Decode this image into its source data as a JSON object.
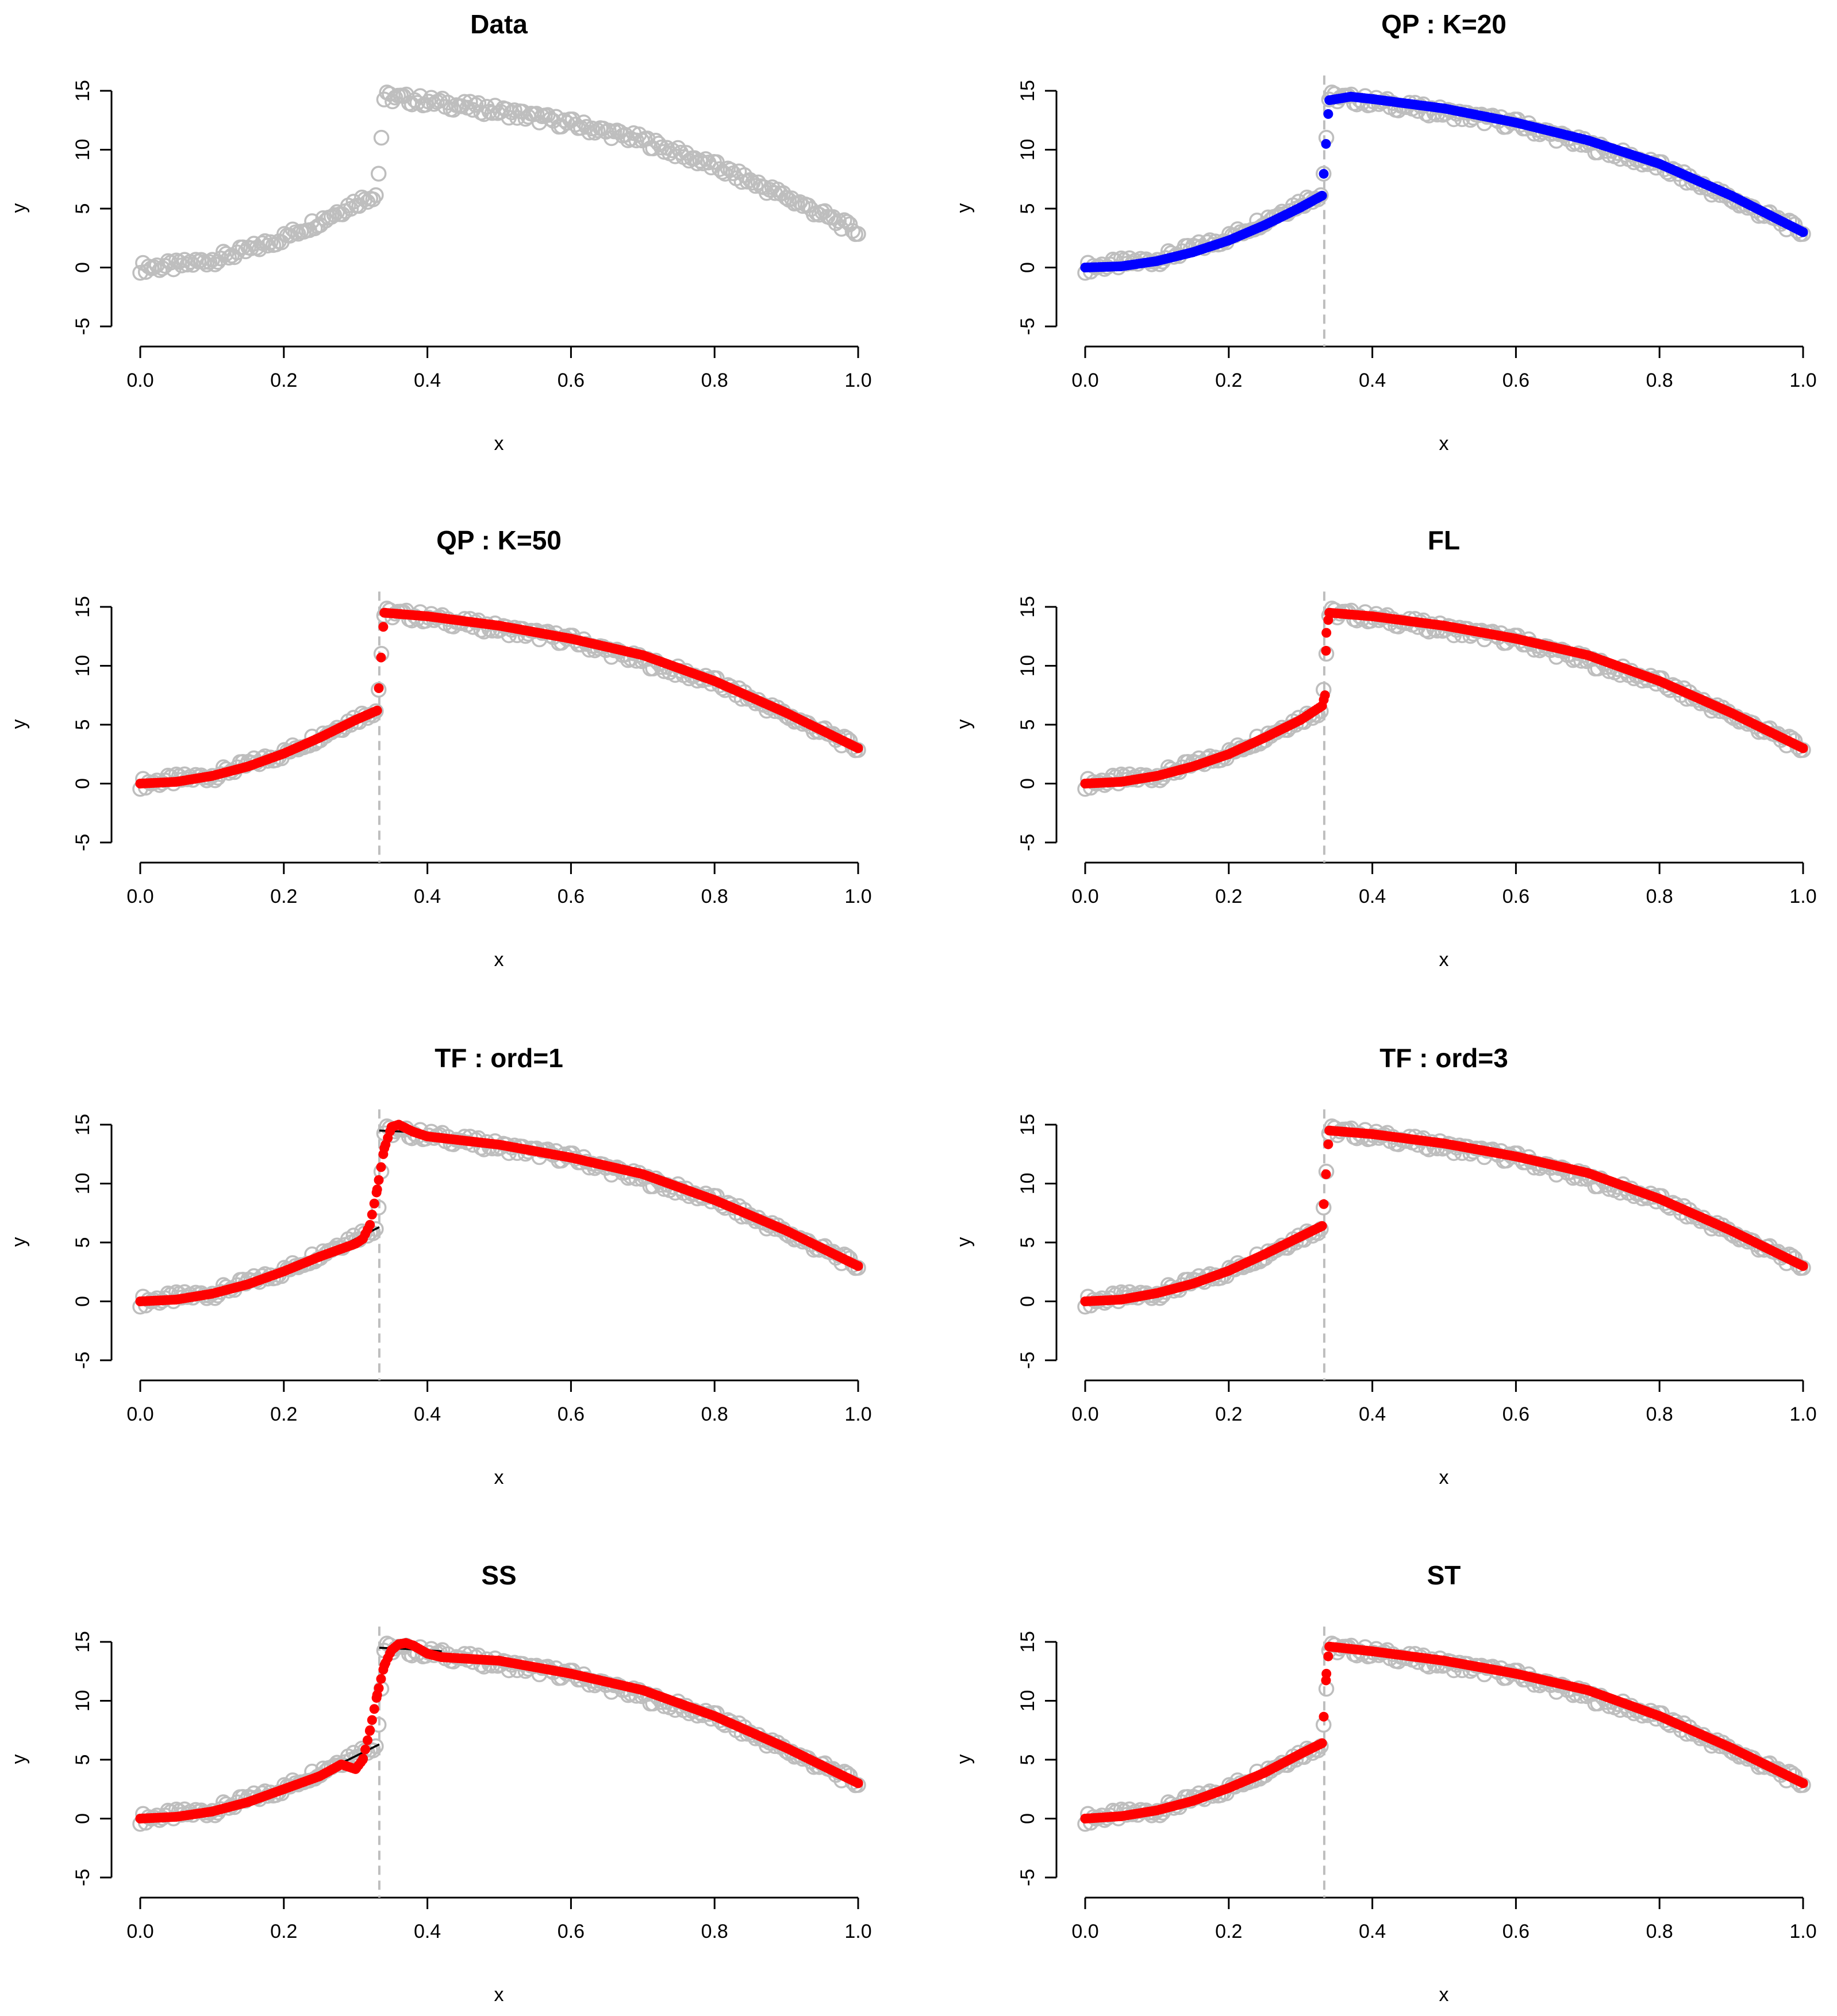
{
  "figure": {
    "colors": {
      "data_points": "#bebebe",
      "jump_line": "#bebebe",
      "fit_blue": "#0000ff",
      "fit_red": "#ff0000",
      "true_curve": "#000000",
      "axis": "#000000"
    }
  },
  "chart_data": [
    {
      "type": "scatter",
      "title": "Data",
      "xlabel": "x",
      "ylabel": "y",
      "xlim": [
        0,
        1
      ],
      "ylim": [
        -5,
        15
      ],
      "x_ticks": [
        "0.0",
        "0.2",
        "0.4",
        "0.6",
        "0.8",
        "1.0"
      ],
      "y_ticks": [
        "-5",
        "0",
        "5",
        "10",
        "15"
      ],
      "jump_at": null,
      "series": [
        {
          "name": "data",
          "color": "#bebebe",
          "x": [
            0.0,
            0.05,
            0.1,
            0.15,
            0.2,
            0.25,
            0.3,
            0.33,
            0.34,
            0.4,
            0.5,
            0.6,
            0.7,
            0.8,
            0.9,
            1.0
          ],
          "y": [
            0.0,
            0.15,
            0.65,
            1.45,
            2.55,
            3.95,
            5.5,
            6.3,
            14.5,
            14.1,
            13.3,
            12.2,
            10.8,
            8.6,
            6.0,
            3.0
          ]
        }
      ]
    },
    {
      "type": "scatter",
      "title": "QP : K=20",
      "xlabel": "x",
      "ylabel": "y",
      "xlim": [
        0,
        1
      ],
      "ylim": [
        -5,
        15
      ],
      "x_ticks": [
        "0.0",
        "0.2",
        "0.4",
        "0.6",
        "0.8",
        "1.0"
      ],
      "y_ticks": [
        "-5",
        "0",
        "5",
        "10",
        "15"
      ],
      "jump_at": 0.333,
      "series": [
        {
          "name": "data",
          "color": "#bebebe",
          "x": [
            0.0,
            0.1,
            0.2,
            0.3,
            0.33,
            0.34,
            0.4,
            0.6,
            0.8,
            1.0
          ],
          "y": [
            0.0,
            0.65,
            2.55,
            5.5,
            6.3,
            14.5,
            14.1,
            12.2,
            8.6,
            3.0
          ]
        },
        {
          "name": "fit",
          "color": "#0000ff",
          "x": [
            0.0,
            0.05,
            0.1,
            0.15,
            0.2,
            0.25,
            0.3,
            0.33,
            0.34,
            0.37,
            0.4,
            0.5,
            0.6,
            0.7,
            0.8,
            0.9,
            1.0
          ],
          "y": [
            0.0,
            0.1,
            0.55,
            1.3,
            2.3,
            3.6,
            5.1,
            6.1,
            14.2,
            14.5,
            14.3,
            13.5,
            12.3,
            10.8,
            8.8,
            6.1,
            3.0
          ]
        }
      ]
    },
    {
      "type": "scatter",
      "title": "QP : K=50",
      "xlabel": "x",
      "ylabel": "y",
      "xlim": [
        0,
        1
      ],
      "ylim": [
        -5,
        15
      ],
      "x_ticks": [
        "0.0",
        "0.2",
        "0.4",
        "0.6",
        "0.8",
        "1.0"
      ],
      "y_ticks": [
        "-5",
        "0",
        "5",
        "10",
        "15"
      ],
      "jump_at": 0.333,
      "series": [
        {
          "name": "data",
          "color": "#bebebe",
          "x": [
            0.0,
            0.1,
            0.2,
            0.3,
            0.33,
            0.34,
            0.4,
            0.6,
            0.8,
            1.0
          ],
          "y": [
            0.0,
            0.65,
            2.55,
            5.5,
            6.3,
            14.5,
            14.1,
            12.2,
            8.6,
            3.0
          ]
        },
        {
          "name": "fit",
          "color": "#ff0000",
          "x": [
            0.0,
            0.05,
            0.1,
            0.15,
            0.2,
            0.25,
            0.3,
            0.33,
            0.34,
            0.4,
            0.5,
            0.6,
            0.7,
            0.8,
            0.9,
            1.0
          ],
          "y": [
            0.0,
            0.15,
            0.65,
            1.45,
            2.55,
            3.9,
            5.4,
            6.2,
            14.5,
            14.2,
            13.4,
            12.3,
            10.9,
            8.7,
            6.0,
            3.0
          ]
        }
      ]
    },
    {
      "type": "scatter",
      "title": "FL",
      "xlabel": "x",
      "ylabel": "y",
      "xlim": [
        0,
        1
      ],
      "ylim": [
        -5,
        15
      ],
      "x_ticks": [
        "0.0",
        "0.2",
        "0.4",
        "0.6",
        "0.8",
        "1.0"
      ],
      "y_ticks": [
        "-5",
        "0",
        "5",
        "10",
        "15"
      ],
      "jump_at": 0.333,
      "series": [
        {
          "name": "data",
          "color": "#bebebe",
          "x": [
            0.0,
            0.1,
            0.2,
            0.3,
            0.33,
            0.34,
            0.4,
            0.6,
            0.8,
            1.0
          ],
          "y": [
            0.0,
            0.65,
            2.55,
            5.5,
            6.3,
            14.5,
            14.1,
            12.2,
            8.6,
            3.0
          ]
        },
        {
          "name": "fit",
          "color": "#ff0000",
          "x": [
            0.0,
            0.05,
            0.1,
            0.15,
            0.2,
            0.25,
            0.3,
            0.33,
            0.334,
            0.336,
            0.34,
            0.4,
            0.5,
            0.6,
            0.7,
            0.8,
            0.9,
            1.0
          ],
          "y": [
            0.0,
            0.15,
            0.65,
            1.45,
            2.5,
            3.9,
            5.4,
            6.6,
            7.5,
            12.8,
            14.5,
            14.2,
            13.4,
            12.3,
            10.9,
            8.7,
            6.0,
            3.0
          ]
        }
      ]
    },
    {
      "type": "scatter",
      "title": "TF : ord=1",
      "xlabel": "x",
      "ylabel": "y",
      "xlim": [
        0,
        1
      ],
      "ylim": [
        -5,
        15
      ],
      "x_ticks": [
        "0.0",
        "0.2",
        "0.4",
        "0.6",
        "0.8",
        "1.0"
      ],
      "y_ticks": [
        "-5",
        "0",
        "5",
        "10",
        "15"
      ],
      "jump_at": 0.333,
      "series": [
        {
          "name": "data",
          "color": "#bebebe",
          "x": [
            0.0,
            0.1,
            0.2,
            0.3,
            0.33,
            0.34,
            0.4,
            0.6,
            0.8,
            1.0
          ],
          "y": [
            0.0,
            0.65,
            2.55,
            5.5,
            6.3,
            14.5,
            14.1,
            12.2,
            8.6,
            3.0
          ]
        },
        {
          "name": "true",
          "color": "#000000",
          "x": [
            0.25,
            0.29,
            0.333,
            0.333,
            0.37,
            0.42
          ],
          "y": [
            3.9,
            5.0,
            6.3,
            14.5,
            14.4,
            14.2
          ]
        },
        {
          "name": "fit",
          "color": "#ff0000",
          "x": [
            0.0,
            0.05,
            0.1,
            0.15,
            0.2,
            0.25,
            0.3,
            0.31,
            0.32,
            0.33,
            0.34,
            0.35,
            0.36,
            0.38,
            0.4,
            0.5,
            0.6,
            0.7,
            0.8,
            0.9,
            1.0
          ],
          "y": [
            0.0,
            0.15,
            0.65,
            1.45,
            2.55,
            3.8,
            4.9,
            5.3,
            6.5,
            9.5,
            13.0,
            14.8,
            15.0,
            14.4,
            14.0,
            13.3,
            12.2,
            10.8,
            8.6,
            6.0,
            3.0
          ]
        }
      ]
    },
    {
      "type": "scatter",
      "title": "TF : ord=3",
      "xlabel": "x",
      "ylabel": "y",
      "xlim": [
        0,
        1
      ],
      "ylim": [
        -5,
        15
      ],
      "x_ticks": [
        "0.0",
        "0.2",
        "0.4",
        "0.6",
        "0.8",
        "1.0"
      ],
      "y_ticks": [
        "-5",
        "0",
        "5",
        "10",
        "15"
      ],
      "jump_at": 0.333,
      "series": [
        {
          "name": "data",
          "color": "#bebebe",
          "x": [
            0.0,
            0.1,
            0.2,
            0.3,
            0.33,
            0.34,
            0.4,
            0.6,
            0.8,
            1.0
          ],
          "y": [
            0.0,
            0.65,
            2.55,
            5.5,
            6.3,
            14.5,
            14.1,
            12.2,
            8.6,
            3.0
          ]
        },
        {
          "name": "fit",
          "color": "#ff0000",
          "x": [
            0.0,
            0.05,
            0.1,
            0.15,
            0.2,
            0.25,
            0.3,
            0.33,
            0.34,
            0.4,
            0.5,
            0.6,
            0.7,
            0.8,
            0.9,
            1.0
          ],
          "y": [
            0.0,
            0.15,
            0.7,
            1.5,
            2.6,
            4.0,
            5.5,
            6.4,
            14.5,
            14.2,
            13.4,
            12.3,
            10.9,
            8.7,
            6.0,
            3.0
          ]
        }
      ]
    },
    {
      "type": "scatter",
      "title": "SS",
      "xlabel": "x",
      "ylabel": "y",
      "xlim": [
        0,
        1
      ],
      "ylim": [
        -5,
        15
      ],
      "x_ticks": [
        "0.0",
        "0.2",
        "0.4",
        "0.6",
        "0.8",
        "1.0"
      ],
      "y_ticks": [
        "-5",
        "0",
        "5",
        "10",
        "15"
      ],
      "jump_at": 0.333,
      "series": [
        {
          "name": "data",
          "color": "#bebebe",
          "x": [
            0.0,
            0.1,
            0.2,
            0.3,
            0.33,
            0.34,
            0.4,
            0.6,
            0.8,
            1.0
          ],
          "y": [
            0.0,
            0.65,
            2.55,
            5.5,
            6.3,
            14.5,
            14.1,
            12.2,
            8.6,
            3.0
          ]
        },
        {
          "name": "true",
          "color": "#000000",
          "x": [
            0.25,
            0.29,
            0.333,
            0.333,
            0.37,
            0.42
          ],
          "y": [
            3.9,
            5.0,
            6.3,
            14.5,
            14.4,
            14.2
          ]
        },
        {
          "name": "fit",
          "color": "#ff0000",
          "x": [
            0.0,
            0.05,
            0.1,
            0.15,
            0.2,
            0.25,
            0.28,
            0.3,
            0.31,
            0.32,
            0.33,
            0.34,
            0.35,
            0.36,
            0.37,
            0.38,
            0.4,
            0.42,
            0.5,
            0.6,
            0.7,
            0.8,
            0.9,
            1.0
          ],
          "y": [
            0.0,
            0.15,
            0.6,
            1.4,
            2.5,
            3.6,
            4.6,
            4.2,
            5.0,
            7.5,
            10.5,
            13.0,
            14.3,
            14.8,
            14.9,
            14.7,
            14.0,
            13.7,
            13.4,
            12.3,
            10.9,
            8.7,
            6.0,
            3.0
          ]
        }
      ]
    },
    {
      "type": "scatter",
      "title": "ST",
      "xlabel": "x",
      "ylabel": "y",
      "xlim": [
        0,
        1
      ],
      "ylim": [
        -5,
        15
      ],
      "x_ticks": [
        "0.0",
        "0.2",
        "0.4",
        "0.6",
        "0.8",
        "1.0"
      ],
      "y_ticks": [
        "-5",
        "0",
        "5",
        "10",
        "15"
      ],
      "jump_at": 0.333,
      "series": [
        {
          "name": "data",
          "color": "#bebebe",
          "x": [
            0.0,
            0.1,
            0.2,
            0.3,
            0.33,
            0.34,
            0.4,
            0.6,
            0.8,
            1.0
          ],
          "y": [
            0.0,
            0.65,
            2.55,
            5.5,
            6.3,
            14.5,
            14.1,
            12.2,
            8.6,
            3.0
          ]
        },
        {
          "name": "fit",
          "color": "#ff0000",
          "x": [
            0.0,
            0.05,
            0.1,
            0.15,
            0.2,
            0.25,
            0.3,
            0.33,
            0.336,
            0.34,
            0.4,
            0.5,
            0.6,
            0.7,
            0.8,
            0.9,
            1.0
          ],
          "y": [
            0.0,
            0.2,
            0.7,
            1.5,
            2.6,
            3.9,
            5.5,
            6.4,
            12.3,
            14.6,
            14.2,
            13.4,
            12.3,
            10.9,
            8.7,
            6.0,
            3.0
          ]
        }
      ]
    }
  ]
}
